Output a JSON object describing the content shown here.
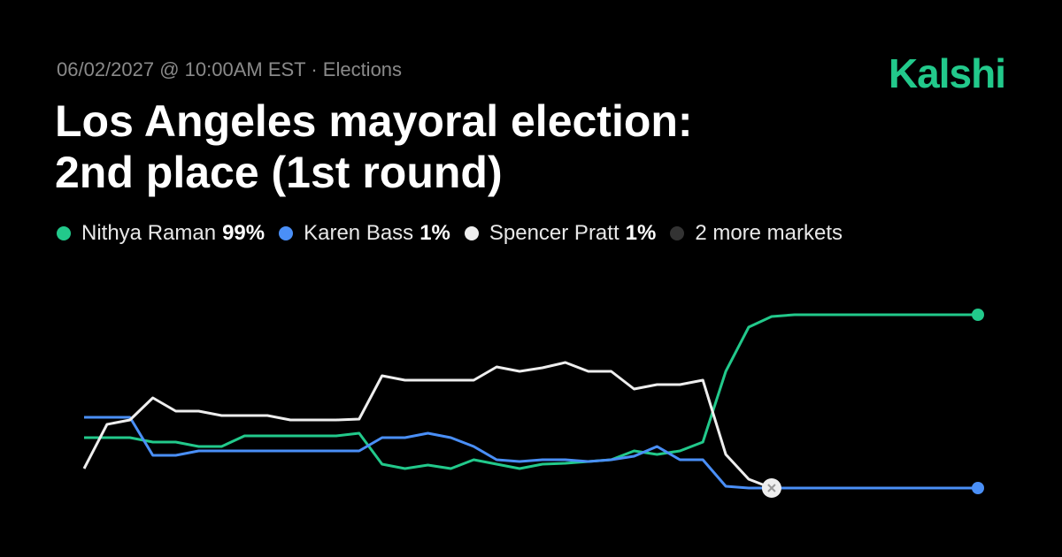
{
  "chart_data": {
    "type": "line",
    "brand": "Kalshi",
    "subtitle": "06/02/2027 @ 10:00AM EST · Elections",
    "title_lines": [
      "Los Angeles mayoral election:",
      "2nd place (1st round)"
    ],
    "ylim": [
      0,
      100
    ],
    "grid": false,
    "categories": [
      null,
      null,
      null,
      null,
      null,
      null,
      null,
      null,
      null,
      null,
      null,
      null,
      null,
      null,
      null,
      null,
      null,
      null,
      null,
      null,
      null,
      null,
      null,
      null,
      null,
      null,
      null,
      null,
      null,
      null,
      null,
      null,
      null,
      null,
      null,
      null,
      null,
      null,
      null,
      null
    ],
    "series": [
      {
        "name": "Nithya Raman",
        "color": "#22c98b",
        "current": 99,
        "current_label": "99%",
        "values": [
          29.5,
          29.5,
          29.5,
          27,
          27,
          24.5,
          24.5,
          30.5,
          30.5,
          30.5,
          30.5,
          30.5,
          32,
          14.5,
          12,
          14,
          12,
          17,
          14.5,
          12,
          14.5,
          15,
          16,
          17,
          22,
          20,
          22,
          27,
          67,
          92,
          98,
          99,
          99,
          99,
          99,
          99,
          99,
          99,
          99,
          99
        ]
      },
      {
        "name": "Karen Bass",
        "color": "#4a8ff7",
        "current": 1,
        "current_label": "1%",
        "values": [
          41,
          41,
          41,
          19.5,
          19.5,
          22,
          22,
          22,
          22,
          22,
          22,
          22,
          22,
          29.5,
          29.5,
          32,
          29.5,
          24.5,
          17,
          16,
          17,
          17,
          16,
          17,
          19,
          24.5,
          17,
          17,
          2,
          1,
          1,
          1,
          1,
          1,
          1,
          1,
          1,
          1,
          1,
          1
        ]
      },
      {
        "name": "Spencer Pratt",
        "color": "#eeeeee",
        "current": 1,
        "current_label": "1%",
        "values": [
          12,
          37,
          39.5,
          52,
          44.5,
          44.5,
          42,
          42,
          42,
          39.5,
          39.5,
          39.5,
          40,
          64.5,
          62,
          62,
          62,
          62,
          69.5,
          67,
          69,
          72,
          67,
          67,
          57,
          59.5,
          59.5,
          62,
          20,
          6,
          1,
          null,
          null,
          null,
          null,
          null,
          null,
          null,
          null,
          null
        ]
      }
    ],
    "legend_extra": {
      "label": "2 more markets",
      "color": "#333333"
    }
  }
}
